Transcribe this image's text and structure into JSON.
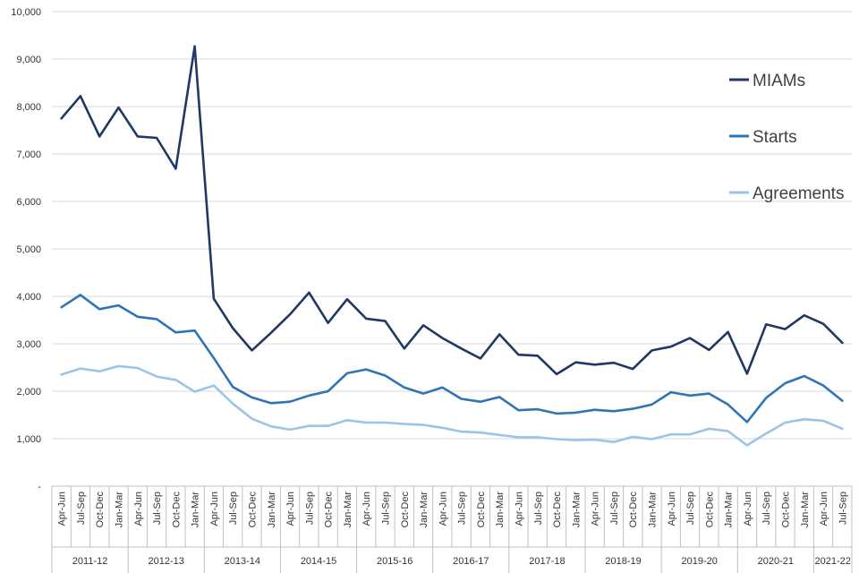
{
  "chart_data": {
    "type": "line",
    "title": "",
    "xlabel": "",
    "ylabel": "",
    "ylim": [
      0,
      10000
    ],
    "y_ticks": [
      0,
      1000,
      2000,
      3000,
      4000,
      5000,
      6000,
      7000,
      8000,
      9000,
      10000
    ],
    "y_tick_labels": [
      "-",
      "1,000",
      "2,000",
      "3,000",
      "4,000",
      "5,000",
      "6,000",
      "7,000",
      "8,000",
      "9,000",
      "10,000"
    ],
    "grid": "horizontal",
    "legend_position": "right",
    "x": [
      "Apr-Jun",
      "Jul-Sep",
      "Oct-Dec",
      "Jan-Mar",
      "Apr-Jun",
      "Jul-Sep",
      "Oct-Dec",
      "Jan-Mar",
      "Apr-Jun",
      "Jul-Sep",
      "Oct-Dec",
      "Jan-Mar",
      "Apr-Jun",
      "Jul-Sep",
      "Oct-Dec",
      "Jan-Mar",
      "Apr-Jun",
      "Jul-Sep",
      "Oct-Dec",
      "Jan-Mar",
      "Apr-Jun",
      "Jul-Sep",
      "Oct-Dec",
      "Jan-Mar",
      "Apr-Jun",
      "Jul-Sep",
      "Oct-Dec",
      "Jan-Mar",
      "Apr-Jun",
      "Jul-Sep",
      "Oct-Dec",
      "Jan-Mar",
      "Apr-Jun",
      "Jul-Sep",
      "Oct-Dec",
      "Jan-Mar",
      "Apr-Jun",
      "Jul-Sep",
      "Oct-Dec",
      "Jan-Mar",
      "Apr-Jun",
      "Jul-Sep"
    ],
    "groups": [
      {
        "label": "2011-12",
        "count": 4
      },
      {
        "label": "2012-13",
        "count": 4
      },
      {
        "label": "2013-14",
        "count": 4
      },
      {
        "label": "2014-15",
        "count": 4
      },
      {
        "label": "2015-16",
        "count": 4
      },
      {
        "label": "2016-17",
        "count": 4
      },
      {
        "label": "2017-18",
        "count": 4
      },
      {
        "label": "2018-19",
        "count": 4
      },
      {
        "label": "2019-20",
        "count": 4
      },
      {
        "label": "2020-21",
        "count": 4
      },
      {
        "label": "2021-22",
        "count": 2
      }
    ],
    "series": [
      {
        "name": "MIAMs",
        "color": "#1f3864",
        "values": [
          7750,
          8220,
          7370,
          7980,
          7370,
          7340,
          6690,
          9270,
          3950,
          3330,
          2860,
          3230,
          3620,
          4080,
          3440,
          3940,
          3530,
          3480,
          2900,
          3390,
          3120,
          2900,
          2690,
          3200,
          2770,
          2750,
          2360,
          2610,
          2560,
          2600,
          2470,
          2860,
          2940,
          3120,
          2870,
          3250,
          2370,
          3410,
          3310,
          3600,
          3420,
          3020
        ]
      },
      {
        "name": "Starts",
        "color": "#2e75b6",
        "values": [
          3770,
          4030,
          3730,
          3810,
          3570,
          3520,
          3240,
          3280,
          2700,
          2090,
          1870,
          1750,
          1780,
          1910,
          2000,
          2380,
          2460,
          2330,
          2080,
          1950,
          2080,
          1840,
          1780,
          1880,
          1600,
          1620,
          1530,
          1550,
          1610,
          1580,
          1630,
          1720,
          1980,
          1910,
          1950,
          1720,
          1350,
          1860,
          2170,
          2320,
          2120,
          1800
        ]
      },
      {
        "name": "Agreements",
        "color": "#9dc3e6",
        "values": [
          2350,
          2480,
          2420,
          2530,
          2490,
          2310,
          2240,
          1990,
          2120,
          1740,
          1420,
          1260,
          1190,
          1270,
          1270,
          1390,
          1340,
          1340,
          1310,
          1290,
          1230,
          1150,
          1130,
          1080,
          1030,
          1030,
          990,
          970,
          980,
          930,
          1040,
          990,
          1090,
          1090,
          1210,
          1160,
          860,
          1110,
          1340,
          1410,
          1380,
          1210
        ]
      }
    ]
  }
}
